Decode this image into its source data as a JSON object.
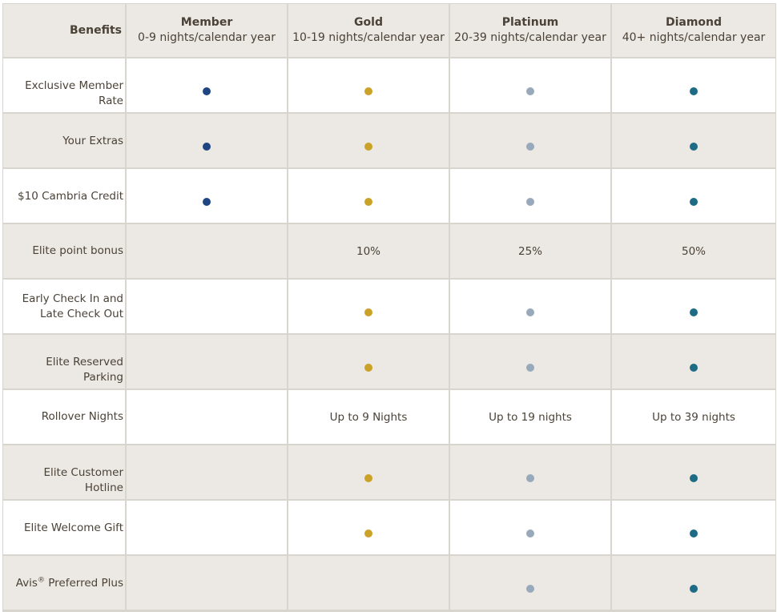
{
  "colors": {
    "member": "#1f4582",
    "gold": "#c9a227",
    "platinum": "#97a9bb",
    "diamond": "#1e6b86"
  },
  "header": {
    "benefits_label": "Benefits",
    "tiers": [
      {
        "key": "member",
        "name": "Member",
        "range": "0-9 nights/calendar year"
      },
      {
        "key": "gold",
        "name": "Gold",
        "range": "10-19 nights/calendar year"
      },
      {
        "key": "platinum",
        "name": "Platinum",
        "range": "20-39 nights/calendar year"
      },
      {
        "key": "diamond",
        "name": "Diamond",
        "range": "40+ nights/calendar year"
      }
    ]
  },
  "rows": [
    {
      "label": "Exclusive Member Rate",
      "cells": [
        {
          "dot": "member"
        },
        {
          "dot": "gold"
        },
        {
          "dot": "platinum"
        },
        {
          "dot": "diamond"
        }
      ]
    },
    {
      "label": "Your Extras",
      "cells": [
        {
          "dot": "member"
        },
        {
          "dot": "gold"
        },
        {
          "dot": "platinum"
        },
        {
          "dot": "diamond"
        }
      ]
    },
    {
      "label": "$10 Cambria Credit",
      "cells": [
        {
          "dot": "member"
        },
        {
          "dot": "gold"
        },
        {
          "dot": "platinum"
        },
        {
          "dot": "diamond"
        }
      ]
    },
    {
      "label": "Elite point bonus",
      "cells": [
        {},
        {
          "text": "10%"
        },
        {
          "text": "25%"
        },
        {
          "text": "50%"
        }
      ]
    },
    {
      "label": "Early Check In and Late Check Out",
      "cells": [
        {},
        {
          "dot": "gold"
        },
        {
          "dot": "platinum"
        },
        {
          "dot": "diamond"
        }
      ]
    },
    {
      "label": "Elite Reserved Parking",
      "cells": [
        {},
        {
          "dot": "gold"
        },
        {
          "dot": "platinum"
        },
        {
          "dot": "diamond"
        }
      ]
    },
    {
      "label": "Rollover Nights",
      "cells": [
        {},
        {
          "text": "Up to 9 Nights"
        },
        {
          "text": "Up to 19 nights"
        },
        {
          "text": "Up to 39 nights"
        }
      ]
    },
    {
      "label": "Elite Customer Hotline",
      "cells": [
        {},
        {
          "dot": "gold"
        },
        {
          "dot": "platinum"
        },
        {
          "dot": "diamond"
        }
      ]
    },
    {
      "label": "Elite Welcome Gift",
      "cells": [
        {},
        {
          "dot": "gold"
        },
        {
          "dot": "platinum"
        },
        {
          "dot": "diamond"
        }
      ]
    },
    {
      "label": "Avis",
      "label_sup": "®",
      "label_after": " Preferred Plus",
      "cells": [
        {},
        {},
        {
          "dot": "platinum"
        },
        {
          "dot": "diamond"
        }
      ]
    }
  ]
}
